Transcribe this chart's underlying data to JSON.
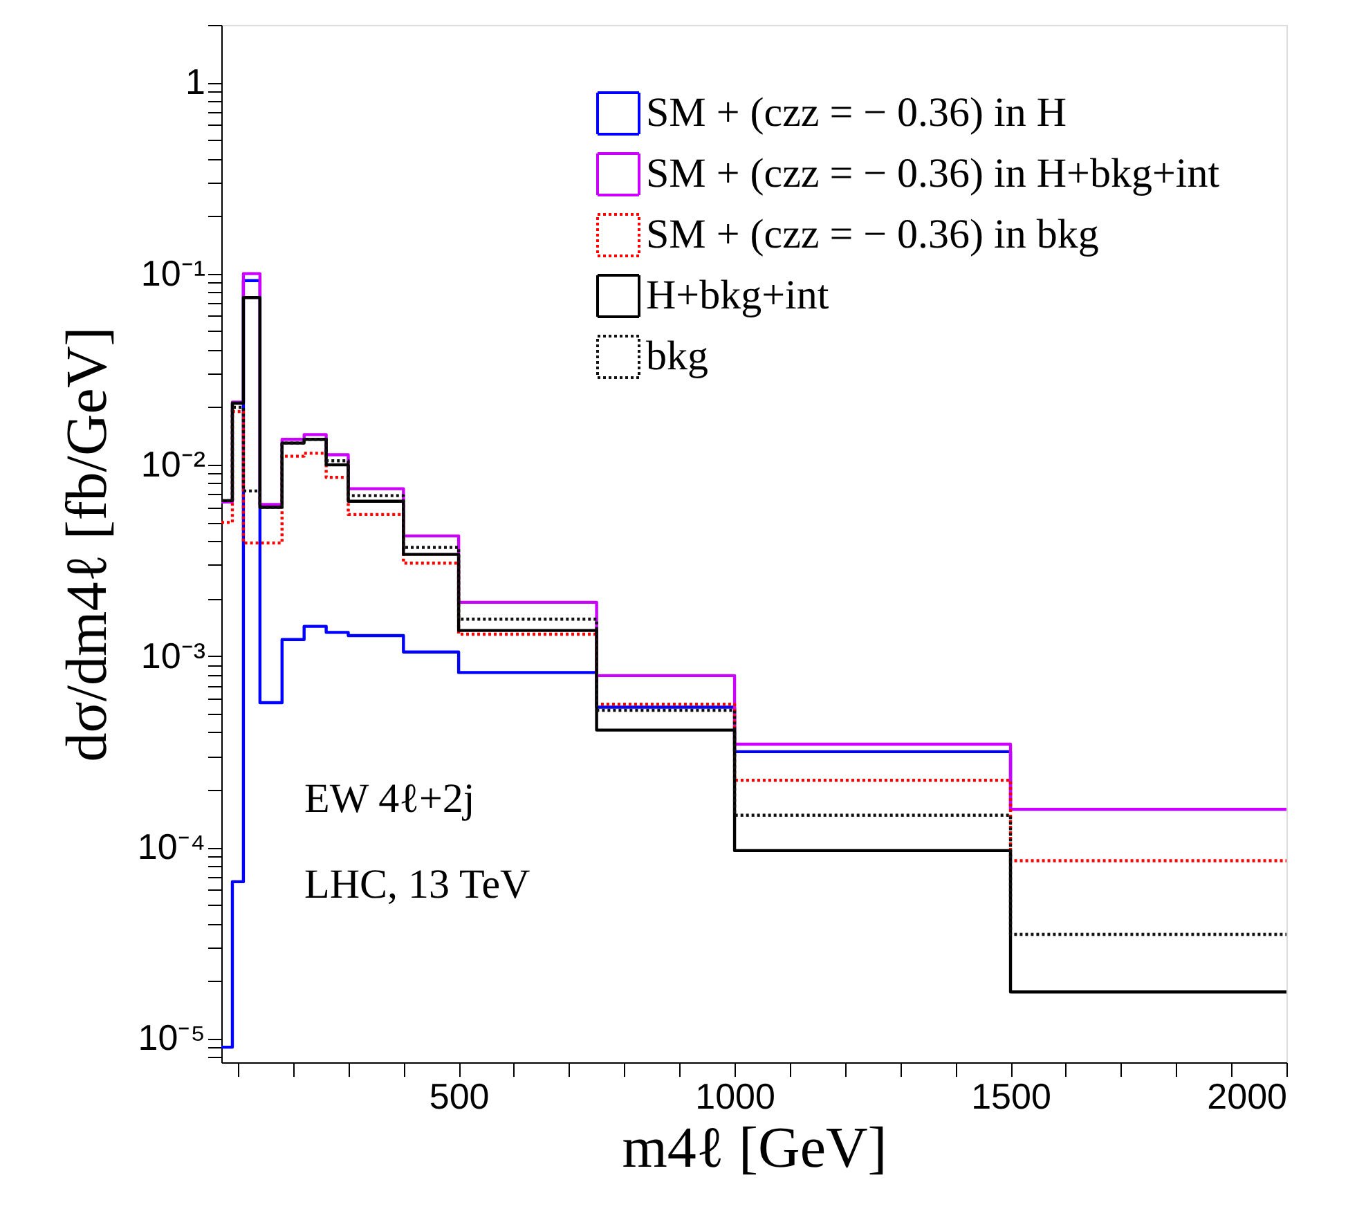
{
  "chart_data": {
    "type": "histogram",
    "xlabel": "m4ℓ [GeV]",
    "ylabel": "dσ/dm4ℓ [fb/GeV]",
    "bins": [
      70,
      90,
      110,
      140,
      180,
      220,
      260,
      300,
      400,
      500,
      750,
      1000,
      1500,
      2000
    ],
    "series": [
      {
        "name": "SM + (czz = − 0.36) in H",
        "color": "#0000ff",
        "line_style": "solid",
        "values": [
          9e-06,
          6.6e-05,
          0.092,
          0.00057,
          0.00122,
          0.00143,
          0.00133,
          0.00128,
          0.00105,
          0.00082,
          0.00054,
          0.000316,
          0.000158
        ]
      },
      {
        "name": "SM + (czz = − 0.36) in H+bkg+int",
        "color": "#cc00ff",
        "line_style": "solid",
        "values": [
          0.0064,
          0.0213,
          0.1,
          0.0062,
          0.0136,
          0.0144,
          0.0113,
          0.0075,
          0.00425,
          0.00191,
          0.00079,
          0.000346,
          0.000158
        ]
      },
      {
        "name": "SM + (czz = − 0.36) in bkg",
        "color": "#ff0000",
        "line_style": "dotted",
        "values": [
          0.005,
          0.019,
          0.0039,
          0.0039,
          0.0111,
          0.0115,
          0.0086,
          0.0055,
          0.00306,
          0.0013,
          0.00056,
          0.000224,
          8.5e-05
        ]
      },
      {
        "name": "H+bkg+int",
        "color": "#000000",
        "line_style": "solid",
        "values": [
          0.0065,
          0.021,
          0.075,
          0.006,
          0.013,
          0.0136,
          0.01,
          0.00645,
          0.0034,
          0.00136,
          0.00041,
          9.6e-05,
          1.75e-05
        ]
      },
      {
        "name": "bkg",
        "color": "#111111",
        "line_style": "dotted",
        "values": [
          0.0065,
          0.02,
          0.0073,
          0.006,
          0.013,
          0.0136,
          0.0105,
          0.0069,
          0.0037,
          0.00156,
          0.00052,
          0.000147,
          3.5e-05
        ]
      }
    ],
    "log": "y",
    "xlim": [
      70,
      2000
    ],
    "ylim": [
      7.5e-06,
      2
    ],
    "xticks": [
      {
        "value": 100,
        "label": null
      },
      {
        "value": 200,
        "label": null
      },
      {
        "value": 300,
        "label": null
      },
      {
        "value": 400,
        "label": null
      },
      500,
      {
        "value": 600,
        "label": null
      },
      {
        "value": 700,
        "label": null
      },
      {
        "value": 800,
        "label": null
      },
      {
        "value": 900,
        "label": null
      },
      1000,
      {
        "value": 1100,
        "label": null
      },
      {
        "value": 1200,
        "label": null
      },
      {
        "value": 1300,
        "label": null
      },
      {
        "value": 1400,
        "label": null
      },
      1500,
      {
        "value": 1600,
        "label": null
      },
      {
        "value": 1700,
        "label": null
      },
      {
        "value": 1800,
        "label": null
      },
      {
        "value": 1900,
        "label": null
      },
      2000
    ],
    "yticks": [
      {
        "value": 8e-06,
        "label": null
      },
      {
        "value": 9e-06,
        "label": null
      },
      {
        "value": 1e-05,
        "label": "10⁻⁵"
      },
      {
        "value": 2e-05,
        "label": null
      },
      {
        "value": 3e-05,
        "label": null
      },
      {
        "value": 4e-05,
        "label": null
      },
      {
        "value": 5e-05,
        "label": null
      },
      {
        "value": 6e-05,
        "label": null
      },
      {
        "value": 7e-05,
        "label": null
      },
      {
        "value": 8e-05,
        "label": null
      },
      {
        "value": 9e-05,
        "label": null
      },
      {
        "value": 0.0001,
        "label": "10⁻⁴"
      },
      {
        "value": 0.0002,
        "label": null
      },
      {
        "value": 0.0003,
        "label": null
      },
      {
        "value": 0.0004,
        "label": null
      },
      {
        "value": 0.0005,
        "label": null
      },
      {
        "value": 0.0006,
        "label": null
      },
      {
        "value": 0.0007,
        "label": null
      },
      {
        "value": 0.0008,
        "label": null
      },
      {
        "value": 0.0009,
        "label": null
      },
      {
        "value": 0.001,
        "label": "10⁻³"
      },
      {
        "value": 0.002,
        "label": null
      },
      {
        "value": 0.003,
        "label": null
      },
      {
        "value": 0.004,
        "label": null
      },
      {
        "value": 0.005,
        "label": null
      },
      {
        "value": 0.006,
        "label": null
      },
      {
        "value": 0.007,
        "label": null
      },
      {
        "value": 0.008,
        "label": null
      },
      {
        "value": 0.009,
        "label": null
      },
      {
        "value": 0.01,
        "label": "10⁻²"
      },
      {
        "value": 0.02,
        "label": null
      },
      {
        "value": 0.03,
        "label": null
      },
      {
        "value": 0.04,
        "label": null
      },
      {
        "value": 0.05,
        "label": null
      },
      {
        "value": 0.06,
        "label": null
      },
      {
        "value": 0.07,
        "label": null
      },
      {
        "value": 0.08,
        "label": null
      },
      {
        "value": 0.09,
        "label": null
      },
      {
        "value": 0.1,
        "label": "10⁻¹"
      },
      {
        "value": 0.2,
        "label": null
      },
      {
        "value": 0.3,
        "label": null
      },
      {
        "value": 0.4,
        "label": null
      },
      {
        "value": 0.5,
        "label": null
      },
      {
        "value": 0.6,
        "label": null
      },
      {
        "value": 0.7,
        "label": null
      },
      {
        "value": 0.8,
        "label": null
      },
      {
        "value": 0.9,
        "label": null
      },
      {
        "value": 1,
        "label": "1"
      },
      {
        "value": 2,
        "label": null
      }
    ],
    "grid": false,
    "legend": "top right",
    "annotations": [
      "EW 4ℓ+2j",
      "LHC, 13 TeV"
    ]
  }
}
